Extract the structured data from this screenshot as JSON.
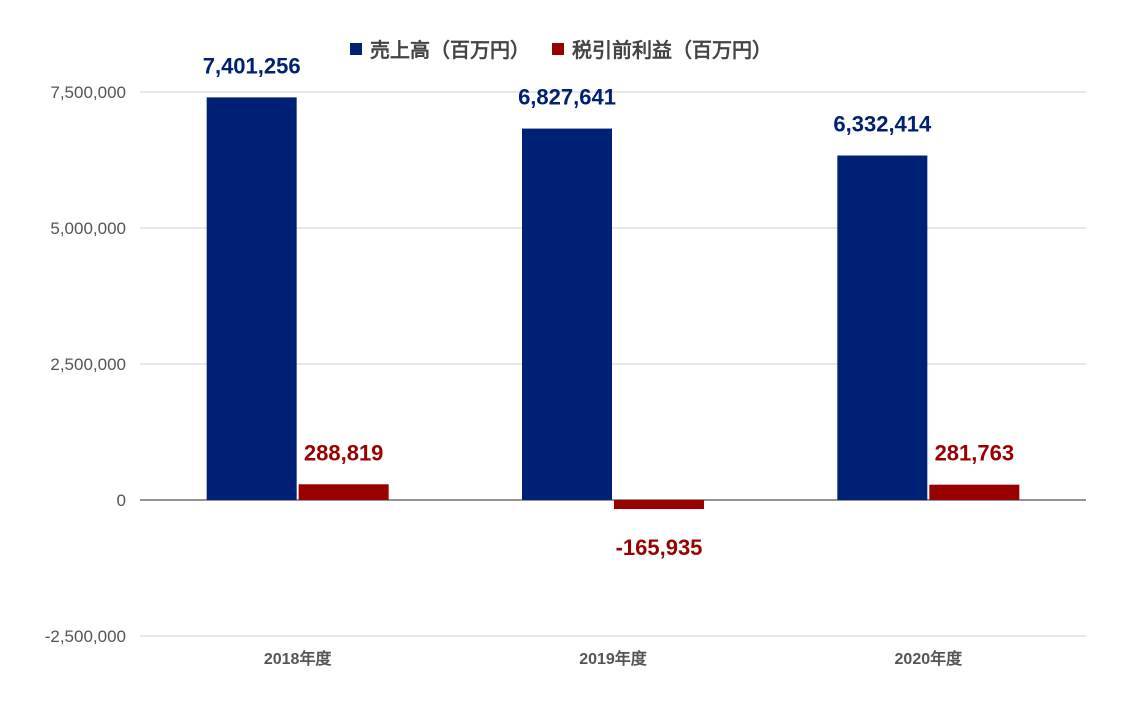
{
  "chart_data": {
    "type": "bar",
    "categories": [
      "2018年度",
      "2019年度",
      "2020年度"
    ],
    "series": [
      {
        "name": "売上高（百万円）",
        "values": [
          7401256,
          6827641,
          6332414
        ],
        "labels": [
          "7,401,256",
          "6,827,641",
          "6,332,414"
        ],
        "color": "#002075"
      },
      {
        "name": "税引前利益（百万円）",
        "values": [
          288819,
          -165935,
          281763
        ],
        "labels": [
          "288,819",
          "-165,935",
          "281,763"
        ],
        "color": "#990000"
      }
    ],
    "ylim": [
      -2500000,
      7500000
    ],
    "yticks": [
      7500000,
      5000000,
      2500000,
      0,
      -2500000
    ],
    "ytick_labels": [
      "7,500,000",
      "5,000,000",
      "2,500,000",
      "0",
      "-2,500,000"
    ],
    "grid": true,
    "legend": "top"
  }
}
